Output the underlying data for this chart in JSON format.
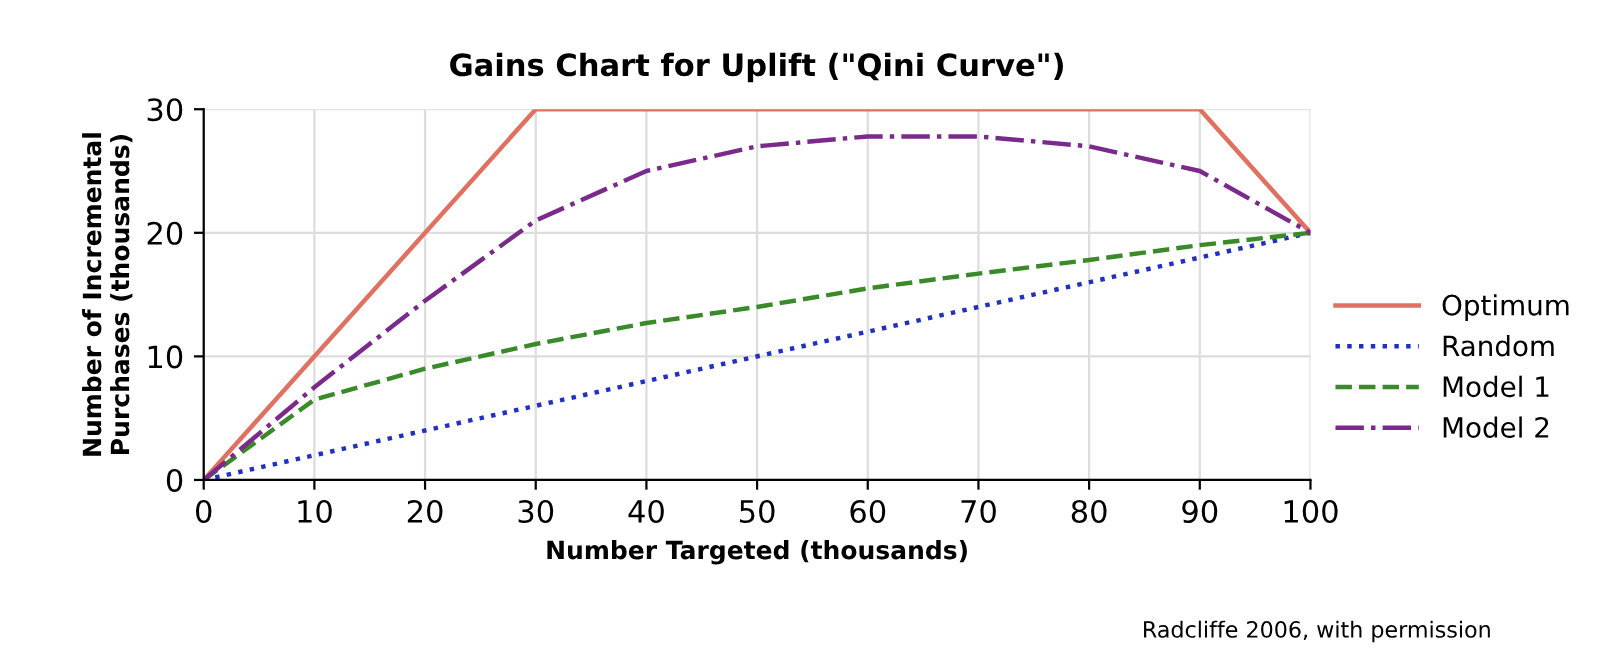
{
  "chart_data": {
    "type": "line",
    "title": "Gains Chart for Uplift (\"Qini Curve\")",
    "xlabel": "Number Targeted (thousands)",
    "ylabel": "Number of Incremental\nPurchases (thousands)",
    "annotations": [
      "Radcliffe 2006, with permission"
    ],
    "xlim": [
      0,
      100
    ],
    "xticks": [
      0,
      10,
      20,
      30,
      40,
      50,
      60,
      70,
      80,
      90,
      100
    ],
    "ylim": [
      0,
      30
    ],
    "yticks": [
      0,
      10,
      20,
      30
    ],
    "grid": true,
    "legend": "right",
    "series": [
      {
        "name": "Optimum",
        "color": "#e07060",
        "line_style": "solid",
        "x": [
          0,
          30,
          90,
          100
        ],
        "values": [
          0,
          30,
          30,
          20
        ]
      },
      {
        "name": "Random",
        "color": "#2030c0",
        "line_style": "dotted",
        "x": [
          0,
          100
        ],
        "values": [
          0,
          20
        ]
      },
      {
        "name": "Model 1",
        "color": "#3a8a2a",
        "line_style": "dashed",
        "x": [
          0,
          10,
          20,
          30,
          40,
          50,
          60,
          70,
          80,
          90,
          100
        ],
        "values": [
          0,
          6.5,
          9,
          11,
          12.7,
          14,
          15.5,
          16.7,
          17.8,
          19,
          20
        ]
      },
      {
        "name": "Model 2",
        "color": "#7a2a8a",
        "line_style": "dashdot",
        "x": [
          0,
          10,
          20,
          30,
          40,
          50,
          60,
          70,
          80,
          90,
          100
        ],
        "values": [
          0,
          7.5,
          14.5,
          21,
          25,
          27,
          27.8,
          27.8,
          27,
          25,
          20
        ]
      }
    ]
  }
}
